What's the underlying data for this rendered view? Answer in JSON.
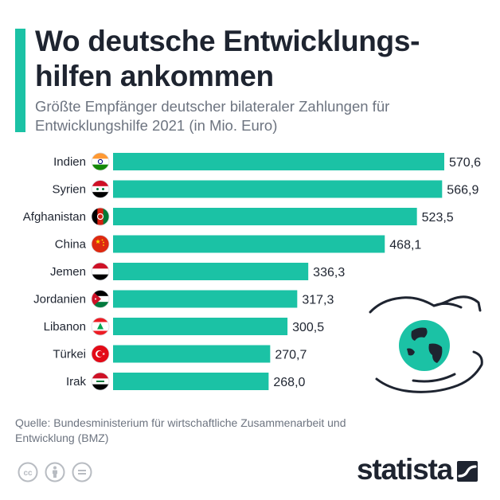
{
  "header": {
    "title": "Wo deutsche Entwicklungs-hilfen ankommen",
    "subtitle": "Größte Empfänger deutscher bilateraler Zahlungen für Entwicklungshilfe 2021 (in Mio. Euro)"
  },
  "colors": {
    "accent": "#1bc2a5",
    "bar": "#1bc2a5",
    "text": "#1e2430",
    "muted": "#6d7480"
  },
  "chart_data": {
    "type": "bar",
    "orientation": "horizontal",
    "title": "Wo deutsche Entwicklungs-hilfen ankommen",
    "subtitle": "Größte Empfänger deutscher bilateraler Zahlungen für Entwicklungshilfe 2021 (in Mio. Euro)",
    "categories": [
      "Indien",
      "Syrien",
      "Afghanistan",
      "China",
      "Jemen",
      "Jordanien",
      "Libanon",
      "Türkei",
      "Irak"
    ],
    "values": [
      570.6,
      566.9,
      523.5,
      468.1,
      336.3,
      317.3,
      300.5,
      270.7,
      268.0
    ],
    "value_labels": [
      "570,6",
      "566,9",
      "523,5",
      "468,1",
      "336,3",
      "317,3",
      "300,5",
      "270,7",
      "268,0"
    ],
    "flags": [
      "flag-india-icon",
      "flag-syria-icon",
      "flag-afghanistan-icon",
      "flag-china-icon",
      "flag-yemen-icon",
      "flag-jordan-icon",
      "flag-lebanon-icon",
      "flag-turkey-icon",
      "flag-iraq-icon"
    ],
    "xlim": [
      0,
      570.6
    ],
    "grid": false,
    "legend": "none"
  },
  "footer": {
    "source": "Quelle: Bundesministerium für wirtschaftliche Zusammenarbeit und Entwicklung (BMZ)",
    "brand": "statista",
    "license_icons": [
      "cc-icon",
      "by-icon",
      "nd-icon"
    ]
  },
  "illustration": "hands-holding-globe-icon"
}
